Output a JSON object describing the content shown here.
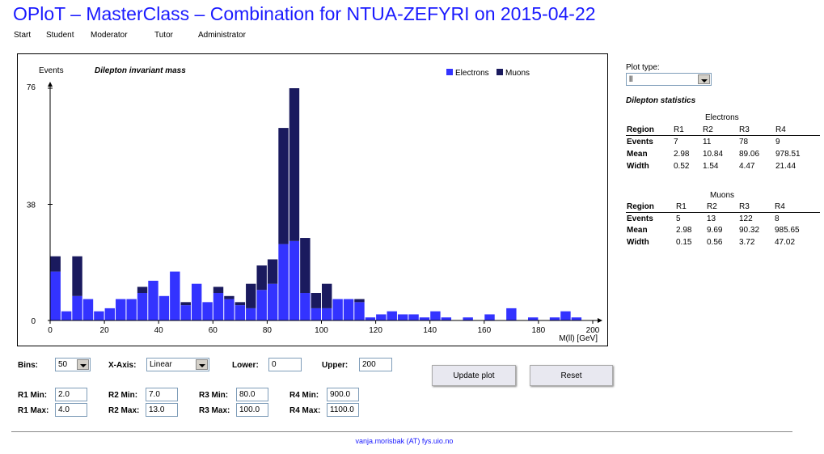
{
  "header": {
    "title": "OPloT – MasterClass – Combination for NTUA-ZEFYRI on 2015-04-22"
  },
  "nav": {
    "items": [
      "Start",
      "Student",
      "Moderator",
      "Tutor",
      "Administrator"
    ]
  },
  "colors": {
    "electrons": "#3333ff",
    "muons": "#1a1a5e",
    "title": "#1a1aff"
  },
  "chart_data": {
    "type": "bar",
    "stacked": true,
    "title": "Dilepton invariant mass",
    "ylabel": "Events",
    "xlabel": "M(ll) [GeV]",
    "xlim": [
      0,
      200
    ],
    "ylim": [
      0,
      76
    ],
    "bin_width": 4,
    "x_ticks": [
      0,
      20,
      40,
      60,
      80,
      100,
      120,
      140,
      160,
      180,
      200
    ],
    "y_ticks": [
      0,
      38,
      76
    ],
    "legend": [
      "Electrons",
      "Muons"
    ],
    "categories": [
      "0-4",
      "4-8",
      "8-12",
      "12-16",
      "16-20",
      "20-24",
      "24-28",
      "28-32",
      "32-36",
      "36-40",
      "40-44",
      "44-48",
      "48-52",
      "52-56",
      "56-60",
      "60-64",
      "64-68",
      "68-72",
      "72-76",
      "76-80",
      "80-84",
      "84-88",
      "88-92",
      "92-96",
      "96-100",
      "100-104",
      "104-108",
      "108-112",
      "112-116",
      "116-120",
      "120-124",
      "124-128",
      "128-132",
      "132-136",
      "136-140",
      "140-144",
      "144-148",
      "148-152",
      "152-156",
      "156-160",
      "160-164",
      "164-168",
      "168-172",
      "172-176",
      "176-180",
      "180-184",
      "184-188",
      "188-192",
      "192-196",
      "196-200"
    ],
    "series": [
      {
        "name": "Electrons",
        "values": [
          16,
          3,
          8,
          7,
          3,
          4,
          7,
          7,
          9,
          13,
          8,
          16,
          5,
          12,
          6,
          9,
          7,
          5,
          4,
          10,
          12,
          25,
          26,
          9,
          4,
          4,
          7,
          7,
          6,
          1,
          2,
          3,
          2,
          2,
          1,
          3,
          1,
          0,
          1,
          0,
          2,
          0,
          4,
          0,
          1,
          0,
          1,
          3,
          1,
          0
        ]
      },
      {
        "name": "Muons",
        "values": [
          5,
          0,
          13,
          0,
          0,
          0,
          0,
          0,
          2,
          0,
          0,
          0,
          1,
          0,
          0,
          2,
          1,
          1,
          8,
          8,
          8,
          38,
          50,
          18,
          5,
          8,
          0,
          0,
          1,
          0,
          0,
          0,
          0,
          0,
          0,
          0,
          0,
          0,
          0,
          0,
          0,
          0,
          0,
          0,
          0,
          0,
          0,
          0,
          0,
          0
        ]
      }
    ]
  },
  "side": {
    "plot_type_label": "Plot type:",
    "plot_type_value": "ll",
    "stats_title": "Dilepton statistics",
    "electrons": {
      "title": "Electrons",
      "header": [
        "Region",
        "R1",
        "R2",
        "R3",
        "R4"
      ],
      "rows": [
        [
          "Events",
          "7",
          "11",
          "78",
          "9"
        ],
        [
          "Mean",
          "2.98",
          "10.84",
          "89.06",
          "978.51"
        ],
        [
          "Width",
          "0.52",
          "1.54",
          "4.47",
          "21.44"
        ]
      ]
    },
    "muons": {
      "title": "Muons",
      "header": [
        "Region",
        "R1",
        "R2",
        "R3",
        "R4"
      ],
      "rows": [
        [
          "Events",
          "5",
          "13",
          "122",
          "8"
        ],
        [
          "Mean",
          "2.98",
          "9.69",
          "90.32",
          "985.65"
        ],
        [
          "Width",
          "0.15",
          "0.56",
          "3.72",
          "47.02"
        ]
      ]
    }
  },
  "controls": {
    "bins_label": "Bins:",
    "bins_value": "50",
    "xaxis_label": "X-Axis:",
    "xaxis_value": "Linear",
    "lower_label": "Lower:",
    "lower_value": "0",
    "upper_label": "Upper:",
    "upper_value": "200",
    "update_label": "Update plot",
    "reset_label": "Reset",
    "r1_min_label": "R1 Min:",
    "r1_min": "2.0",
    "r1_max_label": "R1 Max:",
    "r1_max": "4.0",
    "r2_min_label": "R2 Min:",
    "r2_min": "7.0",
    "r2_max_label": "R2 Max:",
    "r2_max": "13.0",
    "r3_min_label": "R3 Min:",
    "r3_min": "80.0",
    "r3_max_label": "R3 Max:",
    "r3_max": "100.0",
    "r4_min_label": "R4 Min:",
    "r4_min": "900.0",
    "r4_max_label": "R4 Max:",
    "r4_max": "1100.0"
  },
  "footer": {
    "text": "vanja.morisbak (AT) fys.uio.no"
  }
}
